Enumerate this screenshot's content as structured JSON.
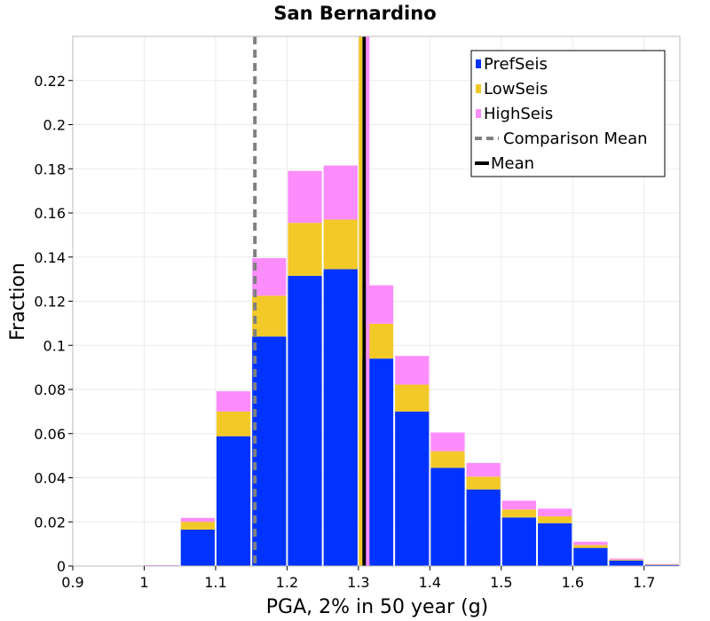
{
  "chart_data": {
    "type": "bar",
    "stacked": true,
    "title": "San Bernardino",
    "xlabel": "PGA, 2% in 50 year (g)",
    "ylabel": "Fraction",
    "xlim": [
      0.9,
      1.75
    ],
    "ylim": [
      0,
      0.24
    ],
    "xticks": [
      "0.9",
      "1",
      "1.1",
      "1.2",
      "1.3",
      "1.4",
      "1.5",
      "1.6",
      "1.7"
    ],
    "yticks": [
      "0",
      "0.02",
      "0.04",
      "0.06",
      "0.08",
      "0.1",
      "0.12",
      "0.14",
      "0.16",
      "0.18",
      "0.2",
      "0.22"
    ],
    "grid": true,
    "legend_position": "top-right",
    "bin_width": 0.05,
    "bin_centers": [
      0.925,
      0.975,
      1.025,
      1.075,
      1.125,
      1.175,
      1.225,
      1.275,
      1.325,
      1.375,
      1.425,
      1.475,
      1.525,
      1.575,
      1.625,
      1.675,
      1.725
    ],
    "series": [
      {
        "name": "PrefSeis",
        "color": "#0033ff",
        "values": [
          0,
          0,
          0,
          0.0165,
          0.0588,
          0.104,
          0.1315,
          0.1345,
          0.094,
          0.07,
          0.0445,
          0.0347,
          0.022,
          0.0194,
          0.0082,
          0.0025,
          0.0006
        ]
      },
      {
        "name": "LowSeis",
        "color": "#f2c927",
        "values": [
          0,
          0,
          0,
          0.0035,
          0.0112,
          0.0185,
          0.024,
          0.0225,
          0.0158,
          0.0122,
          0.0075,
          0.0058,
          0.0036,
          0.0031,
          0.0013,
          0.0004,
          0.0001
        ]
      },
      {
        "name": "HighSeis",
        "color": "#fc8cfc",
        "values": [
          0,
          0,
          0.0004,
          0.0018,
          0.0092,
          0.017,
          0.0235,
          0.0245,
          0.0174,
          0.013,
          0.0085,
          0.0062,
          0.004,
          0.0035,
          0.0015,
          0.0005,
          0.0002
        ]
      }
    ],
    "vlines": [
      {
        "name": "Comparison Mean",
        "x": 1.155,
        "color": "#808080",
        "style": "dashed"
      },
      {
        "name": "Mean",
        "x": 1.308,
        "color": "#000000",
        "style": "solid"
      },
      {
        "x": 1.303,
        "color": "#f2c927",
        "style": "solid"
      },
      {
        "x": 1.313,
        "color": "#fc8cfc",
        "style": "solid"
      }
    ]
  }
}
